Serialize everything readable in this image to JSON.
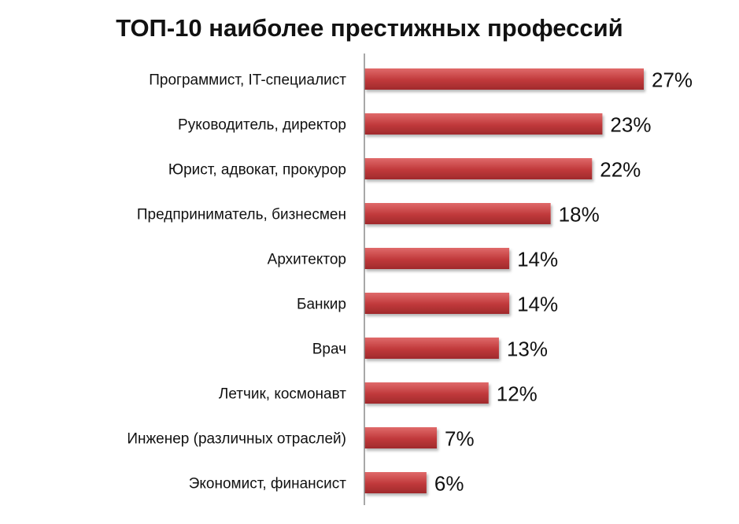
{
  "chart_data": {
    "type": "bar",
    "orientation": "horizontal",
    "title": "ТОП-10 наиболее престижных профессий",
    "xlabel": "",
    "ylabel": "",
    "categories": [
      "Программист, IT-специалист",
      "Руководитель, директор",
      "Юрист, адвокат, прокурор",
      "Предприниматель, бизнесмен",
      "Архитектор",
      "Банкир",
      "Врач",
      "Летчик, космонавт",
      "Инженер (различных отраслей)",
      "Экономист, финансист"
    ],
    "values": [
      27,
      23,
      22,
      18,
      14,
      14,
      13,
      12,
      7,
      6
    ],
    "value_labels": [
      "27%",
      "23%",
      "22%",
      "18%",
      "14%",
      "14%",
      "13%",
      "12%",
      "7%",
      "6%"
    ],
    "unit": "%",
    "xlim": [
      0,
      27
    ],
    "grid": false,
    "legend": "none",
    "colors": {
      "bar": "#c0393b",
      "bar_light": "#e06a6a",
      "bar_dark": "#a02a2c",
      "axis": "#8c8c8c",
      "text": "#111111"
    }
  }
}
